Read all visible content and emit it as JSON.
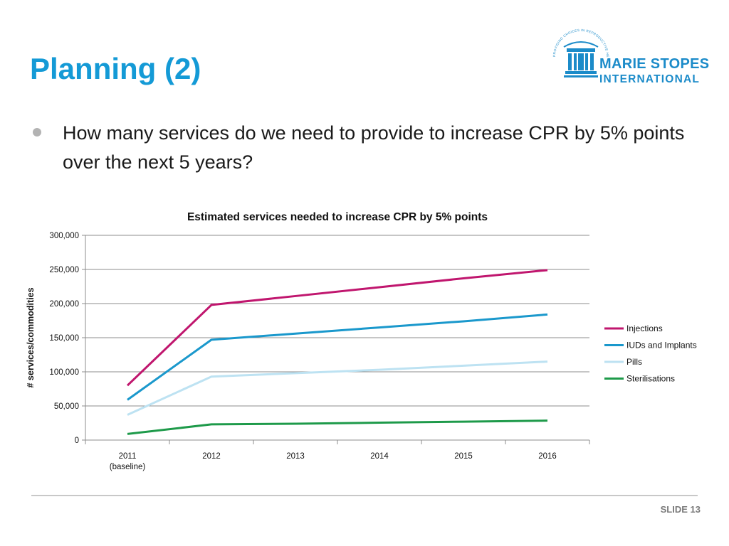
{
  "slide": {
    "title": "Planning (2)",
    "bullet": "How many services do we need to provide to increase CPR by 5% points over the next 5 years?",
    "slide_number": "SLIDE 13"
  },
  "logo": {
    "name_line1": "MARIE STOPES",
    "name_line2": "INTERNATIONAL",
    "arc_text": "PROVIDING CHOICES IN REPRODUCTIVE HEALTHCARE",
    "color": "#1b8bc9"
  },
  "chart_data": {
    "type": "line",
    "title": "Estimated services needed to increase CPR by 5% points",
    "xlabel": "",
    "ylabel": "# services/commodities",
    "categories": [
      "2011 (baseline)",
      "2012",
      "2013",
      "2014",
      "2015",
      "2016"
    ],
    "ylim": [
      0,
      300000
    ],
    "yticks": [
      0,
      50000,
      100000,
      150000,
      200000,
      250000,
      300000
    ],
    "ytick_labels": [
      "0",
      "50,000",
      "100,000",
      "150,000",
      "200,000",
      "250,000",
      "300,000"
    ],
    "grid": true,
    "legend_position": "right",
    "series": [
      {
        "name": "Injections",
        "color": "#c0166e",
        "values": [
          80000,
          198000,
          211000,
          224000,
          237000,
          249000
        ]
      },
      {
        "name": "IUDs and Implants",
        "color": "#1a98cc",
        "values": [
          59000,
          147000,
          156000,
          165000,
          174000,
          184000
        ]
      },
      {
        "name": "Pills",
        "color": "#bde2f2",
        "values": [
          37000,
          93000,
          98000,
          103000,
          109000,
          115000
        ]
      },
      {
        "name": "Sterilisations",
        "color": "#1e9a4a",
        "values": [
          9000,
          23000,
          24000,
          25500,
          27000,
          28500
        ]
      }
    ]
  }
}
